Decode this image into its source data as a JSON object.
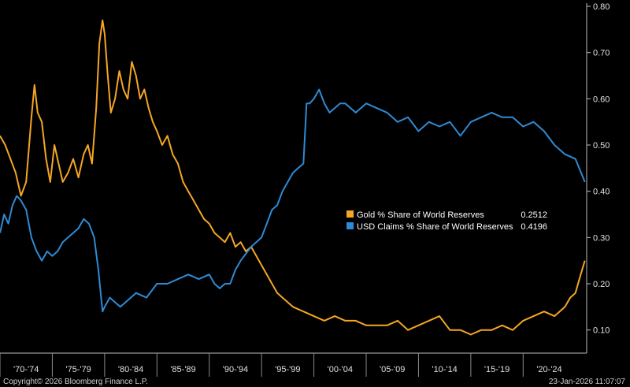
{
  "chart_data": {
    "type": "line",
    "ylim": [
      0.05,
      0.8
    ],
    "y_ticks": [
      "0.10",
      "0.20",
      "0.30",
      "0.40",
      "0.50",
      "0.60",
      "0.70",
      "0.80"
    ],
    "x_tick_labels": [
      "'70-'74",
      "'75-'79",
      "'80-'84",
      "'85-'89",
      "'90-'94",
      "'95-'99",
      "'00-'04",
      "'05-'09",
      "'10-'14",
      "'15-'19",
      "'20-'24"
    ],
    "xlim": [
      1970,
      2026
    ],
    "legend_position": "center-right",
    "grid": false,
    "series": [
      {
        "name": "Gold % Share of World Reserves",
        "last_value": "0.2512",
        "color": "#f5a623",
        "x": [
          1970,
          1970.5,
          1971,
          1971.5,
          1972,
          1972.5,
          1973,
          1973.3,
          1973.6,
          1974,
          1974.4,
          1974.8,
          1975.2,
          1975.6,
          1976,
          1976.5,
          1977,
          1977.5,
          1978,
          1978.4,
          1978.8,
          1979.2,
          1979.5,
          1979.8,
          1980.0,
          1980.3,
          1980.6,
          1981,
          1981.4,
          1981.8,
          1982.2,
          1982.6,
          1983,
          1983.4,
          1983.8,
          1984.2,
          1984.6,
          1985,
          1985.5,
          1986,
          1986.5,
          1987,
          1987.5,
          1988,
          1988.5,
          1989,
          1989.5,
          1990,
          1990.5,
          1991,
          1991.5,
          1992,
          1992.5,
          1993,
          1993.5,
          1994,
          1994.5,
          1995,
          1995.5,
          1996,
          1996.5,
          1997,
          1997.5,
          1998,
          1999,
          2000,
          2001,
          2002,
          2003,
          2004,
          2005,
          2006,
          2007,
          2008,
          2009,
          2010,
          2011,
          2012,
          2013,
          2014,
          2015,
          2016,
          2017,
          2018,
          2019,
          2020,
          2021,
          2022,
          2023,
          2024,
          2024.5,
          2025,
          2025.5,
          2025.9
        ],
        "values": [
          0.52,
          0.5,
          0.47,
          0.44,
          0.39,
          0.42,
          0.56,
          0.63,
          0.57,
          0.55,
          0.47,
          0.42,
          0.5,
          0.46,
          0.42,
          0.44,
          0.47,
          0.43,
          0.48,
          0.5,
          0.46,
          0.58,
          0.72,
          0.77,
          0.74,
          0.65,
          0.57,
          0.6,
          0.66,
          0.62,
          0.6,
          0.68,
          0.65,
          0.6,
          0.62,
          0.58,
          0.55,
          0.53,
          0.5,
          0.52,
          0.48,
          0.46,
          0.42,
          0.4,
          0.38,
          0.36,
          0.34,
          0.33,
          0.31,
          0.3,
          0.29,
          0.31,
          0.28,
          0.29,
          0.27,
          0.28,
          0.26,
          0.24,
          0.22,
          0.2,
          0.18,
          0.17,
          0.16,
          0.15,
          0.14,
          0.13,
          0.12,
          0.13,
          0.12,
          0.12,
          0.11,
          0.11,
          0.11,
          0.12,
          0.1,
          0.11,
          0.12,
          0.13,
          0.1,
          0.1,
          0.09,
          0.1,
          0.1,
          0.11,
          0.1,
          0.12,
          0.13,
          0.14,
          0.13,
          0.15,
          0.17,
          0.18,
          0.22,
          0.25
        ]
      },
      {
        "name": "USD Claims % Share of World Reserves",
        "last_value": "0.4196",
        "color": "#2e8bd6",
        "x": [
          1970,
          1970.4,
          1970.8,
          1971.2,
          1971.6,
          1972,
          1972.5,
          1973,
          1973.5,
          1974,
          1974.5,
          1975,
          1975.5,
          1976,
          1976.5,
          1977,
          1977.5,
          1978,
          1978.5,
          1979,
          1979.4,
          1979.8,
          1980,
          1980.5,
          1981,
          1981.5,
          1982,
          1983,
          1984,
          1985,
          1986,
          1987,
          1988,
          1989,
          1990,
          1990.5,
          1991,
          1991.5,
          1992,
          1992.5,
          1993,
          1994,
          1994.5,
          1995,
          1995.5,
          1996,
          1996.5,
          1997,
          1997.5,
          1998,
          1998.5,
          1999,
          1999.3,
          1999.6,
          2000,
          2000.5,
          2001,
          2001.5,
          2002,
          2002.5,
          2003,
          2004,
          2005,
          2006,
          2007,
          2008,
          2009,
          2010,
          2011,
          2012,
          2013,
          2014,
          2015,
          2016,
          2017,
          2018,
          2019,
          2020,
          2021,
          2022,
          2023,
          2024,
          2025,
          2025.9
        ],
        "values": [
          0.31,
          0.35,
          0.33,
          0.37,
          0.39,
          0.38,
          0.36,
          0.3,
          0.27,
          0.25,
          0.27,
          0.26,
          0.27,
          0.29,
          0.3,
          0.31,
          0.32,
          0.34,
          0.33,
          0.3,
          0.23,
          0.14,
          0.15,
          0.17,
          0.16,
          0.15,
          0.16,
          0.18,
          0.17,
          0.2,
          0.2,
          0.21,
          0.22,
          0.21,
          0.22,
          0.2,
          0.19,
          0.2,
          0.2,
          0.23,
          0.25,
          0.28,
          0.29,
          0.3,
          0.33,
          0.36,
          0.37,
          0.4,
          0.42,
          0.44,
          0.45,
          0.46,
          0.59,
          0.59,
          0.6,
          0.62,
          0.59,
          0.57,
          0.58,
          0.59,
          0.59,
          0.57,
          0.59,
          0.58,
          0.57,
          0.55,
          0.56,
          0.53,
          0.55,
          0.54,
          0.55,
          0.52,
          0.55,
          0.56,
          0.57,
          0.56,
          0.56,
          0.54,
          0.55,
          0.53,
          0.5,
          0.48,
          0.47,
          0.42
        ]
      }
    ]
  },
  "footer": {
    "copyright": "Copyright© 2026 Bloomberg Finance L.P.",
    "timestamp": "23-Jan-2026 11:07:07"
  }
}
